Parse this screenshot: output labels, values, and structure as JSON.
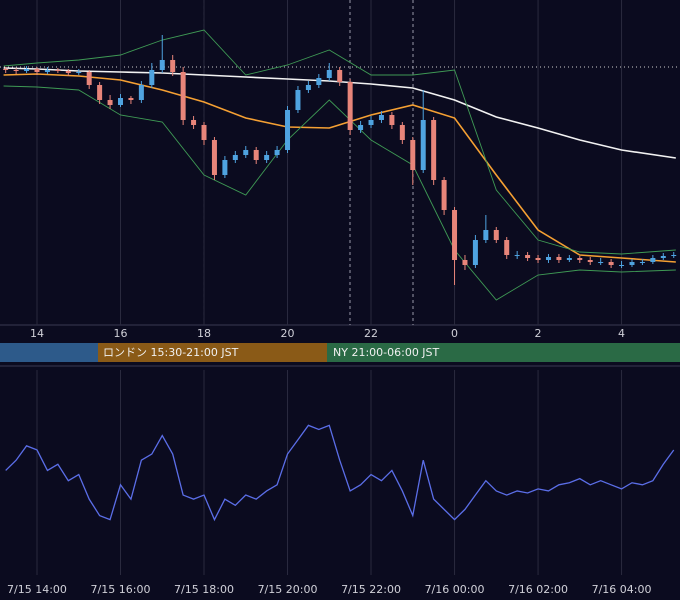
{
  "chart_data": [
    {
      "type": "candlestick",
      "xlim": [
        13.114,
        29.4
      ],
      "ylim": [
        0,
        325
      ],
      "xticks": [
        14,
        16,
        18,
        20,
        22,
        {
          "value": 24,
          "label": "0"
        },
        {
          "value": 26,
          "label": "2"
        },
        {
          "value": 28,
          "label": "4"
        }
      ],
      "grid": true,
      "up_color": "#4fa3e0",
      "down_color": "#e8857a",
      "annotations": [
        "ロンドン 15:30-21:00 JST",
        "NY 21:00-06:00 JST"
      ],
      "x": [
        13.25,
        13.5,
        13.75,
        14,
        14.25,
        14.5,
        14.75,
        15,
        15.25,
        15.5,
        15.75,
        16,
        16.25,
        16.5,
        16.75,
        17,
        17.25,
        17.5,
        17.75,
        18,
        18.25,
        18.5,
        18.75,
        19,
        19.25,
        19.5,
        19.75,
        20,
        20.25,
        20.5,
        20.75,
        21,
        21.25,
        21.5,
        21.75,
        22,
        22.25,
        22.5,
        22.75,
        23,
        23.25,
        23.5,
        23.75,
        24,
        24.25,
        24.5,
        24.75,
        25,
        25.25,
        25.5,
        25.75,
        26,
        26.25,
        26.5,
        26.75,
        27,
        27.25,
        27.5,
        27.75,
        28,
        28.25,
        28.5,
        28.75,
        29,
        29.25
      ],
      "candles": [
        [
          256,
          258,
          252,
          255
        ],
        [
          255,
          257,
          251,
          254
        ],
        [
          254,
          259,
          252,
          256
        ],
        [
          256,
          258,
          250,
          253
        ],
        [
          253,
          258,
          251,
          255
        ],
        [
          255,
          257,
          252,
          254
        ],
        [
          254,
          256,
          249,
          252
        ],
        [
          252,
          256,
          250,
          253
        ],
        [
          253,
          255,
          236,
          240
        ],
        [
          240,
          243,
          221,
          225
        ],
        [
          225,
          230,
          216,
          220
        ],
        [
          220,
          231,
          218,
          227
        ],
        [
          227,
          229,
          221,
          225
        ],
        [
          225,
          244,
          222,
          240
        ],
        [
          240,
          262,
          237,
          255
        ],
        [
          255,
          290,
          252,
          265
        ],
        [
          265,
          270,
          249,
          253
        ],
        [
          253,
          258,
          200,
          205
        ],
        [
          205,
          209,
          196,
          200
        ],
        [
          200,
          203,
          180,
          185
        ],
        [
          185,
          188,
          145,
          150
        ],
        [
          150,
          169,
          147,
          165
        ],
        [
          165,
          174,
          162,
          170
        ],
        [
          170,
          179,
          167,
          175
        ],
        [
          175,
          178,
          161,
          165
        ],
        [
          165,
          174,
          162,
          170
        ],
        [
          170,
          179,
          167,
          175
        ],
        [
          175,
          219,
          172,
          215
        ],
        [
          215,
          239,
          212,
          235
        ],
        [
          235,
          244,
          232,
          240
        ],
        [
          240,
          251,
          237,
          247
        ],
        [
          247,
          262,
          244,
          255
        ],
        [
          255,
          258,
          239,
          243
        ],
        [
          243,
          246,
          190,
          195
        ],
        [
          195,
          204,
          192,
          200
        ],
        [
          200,
          209,
          197,
          205
        ],
        [
          205,
          214,
          202,
          210
        ],
        [
          210,
          213,
          196,
          200
        ],
        [
          200,
          203,
          181,
          185
        ],
        [
          185,
          188,
          140,
          155
        ],
        [
          155,
          235,
          152,
          205
        ],
        [
          205,
          208,
          140,
          145
        ],
        [
          145,
          148,
          110,
          115
        ],
        [
          115,
          118,
          40,
          65
        ],
        [
          65,
          70,
          55,
          60
        ],
        [
          60,
          90,
          57,
          85
        ],
        [
          85,
          110,
          82,
          95
        ],
        [
          95,
          98,
          82,
          85
        ],
        [
          85,
          88,
          66,
          70
        ],
        [
          70,
          74,
          66,
          70
        ],
        [
          70,
          73,
          64,
          67
        ],
        [
          67,
          70,
          62,
          65
        ],
        [
          65,
          71,
          62,
          68
        ],
        [
          68,
          71,
          62,
          65
        ],
        [
          65,
          70,
          63,
          67
        ],
        [
          67,
          69,
          62,
          65
        ],
        [
          65,
          68,
          60,
          63
        ],
        [
          63,
          67,
          60,
          63
        ],
        [
          63,
          66,
          57,
          60
        ],
        [
          60,
          64,
          57,
          60
        ],
        [
          60,
          66,
          58,
          63
        ],
        [
          63,
          66,
          60,
          63
        ],
        [
          63,
          70,
          61,
          67
        ],
        [
          67,
          72,
          65,
          69
        ],
        [
          69,
          73,
          67,
          70
        ]
      ],
      "series": [
        {
          "color": "#f2f2f2",
          "x": [
            13.2,
            14,
            15,
            16,
            17,
            18,
            19,
            20,
            21,
            22,
            23,
            24,
            25,
            26,
            27,
            28,
            29.3
          ],
          "values": [
            257,
            256,
            254,
            253,
            252,
            250,
            248,
            246,
            244,
            241,
            237,
            225,
            208,
            197,
            185,
            175,
            167
          ]
        },
        {
          "color": "#f5a033",
          "x": [
            13.2,
            14,
            15,
            16,
            17,
            18,
            19,
            20,
            21,
            22,
            23,
            24,
            25,
            26,
            27,
            28,
            29.3
          ],
          "values": [
            250,
            251,
            249,
            245,
            235,
            223,
            207,
            198,
            197,
            210,
            220,
            207,
            150,
            95,
            70,
            67,
            63
          ]
        },
        {
          "color": "#3f9a55",
          "x": [
            13.2,
            14,
            15,
            16,
            17,
            18,
            19,
            20,
            21,
            22,
            23,
            24,
            25,
            26,
            27,
            28,
            29.3
          ],
          "values": [
            259,
            262,
            265,
            270,
            285,
            295,
            250,
            260,
            275,
            250,
            250,
            255,
            135,
            85,
            73,
            71,
            75
          ]
        },
        {
          "color": "#3f9a55",
          "x": [
            13.2,
            14,
            15,
            16,
            17,
            18,
            19,
            20,
            21,
            22,
            23,
            24,
            25,
            26,
            27,
            28,
            29.3
          ],
          "values": [
            239,
            238,
            235,
            210,
            203,
            150,
            130,
            185,
            225,
            185,
            160,
            75,
            25,
            50,
            55,
            53,
            55
          ]
        }
      ]
    },
    {
      "type": "line",
      "xlim": [
        13.114,
        29.4
      ],
      "ylim": [
        0,
        100
      ],
      "color": "#5b6ee8",
      "grid": true,
      "xticks": [
        {
          "value": 14,
          "label": "7/15 14:00"
        },
        {
          "value": 16,
          "label": "7/15 16:00"
        },
        {
          "value": 18,
          "label": "7/15 18:00"
        },
        {
          "value": 20,
          "label": "7/15 20:00"
        },
        {
          "value": 22,
          "label": "7/15 22:00"
        },
        {
          "value": 24,
          "label": "7/16 00:00"
        },
        {
          "value": 26,
          "label": "7/16 02:00"
        },
        {
          "value": 28,
          "label": "7/16 04:00"
        }
      ],
      "x": [
        13.25,
        13.5,
        13.75,
        14,
        14.25,
        14.5,
        14.75,
        15,
        15.25,
        15.5,
        15.75,
        16,
        16.25,
        16.5,
        16.75,
        17,
        17.25,
        17.5,
        17.75,
        18,
        18.25,
        18.5,
        18.75,
        19,
        19.25,
        19.5,
        19.75,
        20,
        20.25,
        20.5,
        20.75,
        21,
        21.25,
        21.5,
        21.75,
        22,
        22.25,
        22.5,
        22.75,
        23,
        23.25,
        23.5,
        23.75,
        24,
        24.25,
        24.5,
        24.75,
        25,
        25.25,
        25.5,
        25.75,
        26,
        26.25,
        26.5,
        26.75,
        27,
        27.25,
        27.5,
        27.75,
        28,
        28.25,
        28.5,
        28.75,
        29,
        29.25
      ],
      "values": [
        51,
        56,
        63,
        61,
        51,
        54,
        46,
        49,
        37,
        29,
        27,
        44,
        37,
        56,
        59,
        68,
        59,
        39,
        37,
        39,
        27,
        37,
        34,
        39,
        37,
        41,
        44,
        59,
        66,
        73,
        71,
        73,
        56,
        41,
        44,
        49,
        46,
        51,
        41,
        29,
        56,
        37,
        32,
        27,
        32,
        39,
        46,
        41,
        39,
        41,
        40,
        42,
        41,
        44,
        45,
        47,
        44,
        46,
        44,
        42,
        45,
        44,
        46,
        54,
        61
      ]
    }
  ]
}
